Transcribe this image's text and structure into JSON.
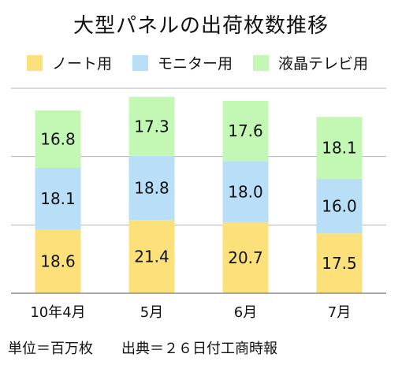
{
  "chart_data": {
    "type": "bar",
    "stacked": true,
    "title": "大型パネルの出荷枚数推移",
    "categories": [
      "10年4月",
      "5月",
      "6月",
      "7月"
    ],
    "series": [
      {
        "name": "ノート用",
        "values": [
          18.6,
          21.4,
          20.7,
          17.5
        ],
        "color": "#fce17a"
      },
      {
        "name": "モニター用",
        "values": [
          18.1,
          18.8,
          18.0,
          16.0
        ],
        "color": "#b9def7"
      },
      {
        "name": "液晶テレビ用",
        "values": [
          16.8,
          17.3,
          17.6,
          18.1
        ],
        "color": "#c3f7b4"
      }
    ],
    "ylim": [
      0,
      60
    ],
    "grid": true,
    "legend_position": "top"
  },
  "footer": {
    "unit": "単位＝百万枚",
    "source": "出典＝２６日付工商時報"
  }
}
